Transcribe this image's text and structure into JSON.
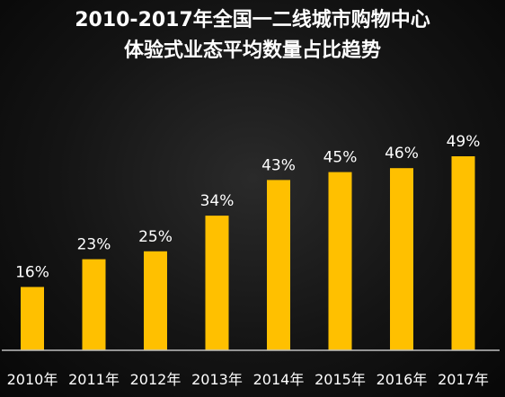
{
  "chart_data": {
    "type": "bar",
    "title_lines": [
      "2010-2017年全国一二线城市购物中心",
      "体验式业态平均数量占比趋势"
    ],
    "categories": [
      "2010年",
      "2011年",
      "2012年",
      "2013年",
      "2014年",
      "2015年",
      "2016年",
      "2017年"
    ],
    "values": [
      16,
      23,
      25,
      34,
      43,
      45,
      46,
      49
    ],
    "value_labels": [
      "16%",
      "23%",
      "25%",
      "34%",
      "43%",
      "45%",
      "46%",
      "49%"
    ],
    "unit": "%",
    "ylim": [
      0,
      49
    ],
    "grid": false,
    "legend": "none",
    "bar_color": "#FFC000",
    "text_color": "#FFFFFF",
    "axis_color": "#BFBFBF",
    "background_color": "#141414"
  }
}
